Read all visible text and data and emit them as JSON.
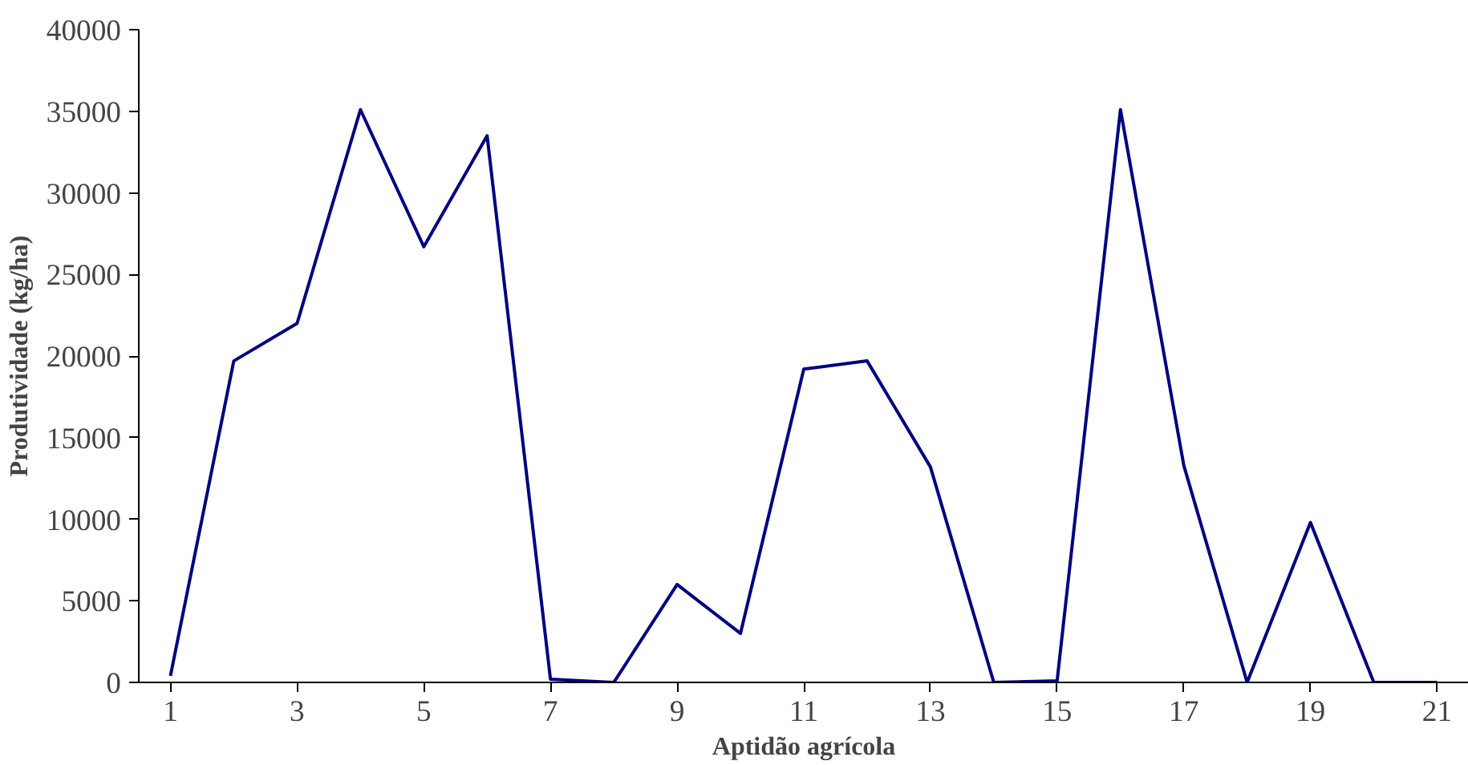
{
  "chart_data": {
    "type": "line",
    "xlabel": "Aptidão agrícola",
    "ylabel": "Produtividade (kg/ha)",
    "x": [
      1,
      2,
      3,
      4,
      5,
      6,
      7,
      8,
      9,
      10,
      11,
      12,
      13,
      14,
      15,
      16,
      17,
      18,
      19,
      20,
      21
    ],
    "series": [
      {
        "color": "#000080",
        "values": [
          400,
          19700,
          22000,
          35100,
          26700,
          33500,
          200,
          0,
          6000,
          3000,
          19200,
          19700,
          13200,
          0,
          100,
          35100,
          13300,
          0,
          9800,
          0,
          0
        ]
      }
    ],
    "xlim": [
      0.5,
      21.5
    ],
    "xticks": [
      1,
      3,
      5,
      7,
      9,
      11,
      13,
      15,
      17,
      19,
      21
    ],
    "ylim": [
      0,
      40000
    ],
    "yticks": [
      0,
      5000,
      10000,
      15000,
      20000,
      25000,
      30000,
      35000,
      40000
    ],
    "marker": "none",
    "line_style": "solid"
  }
}
